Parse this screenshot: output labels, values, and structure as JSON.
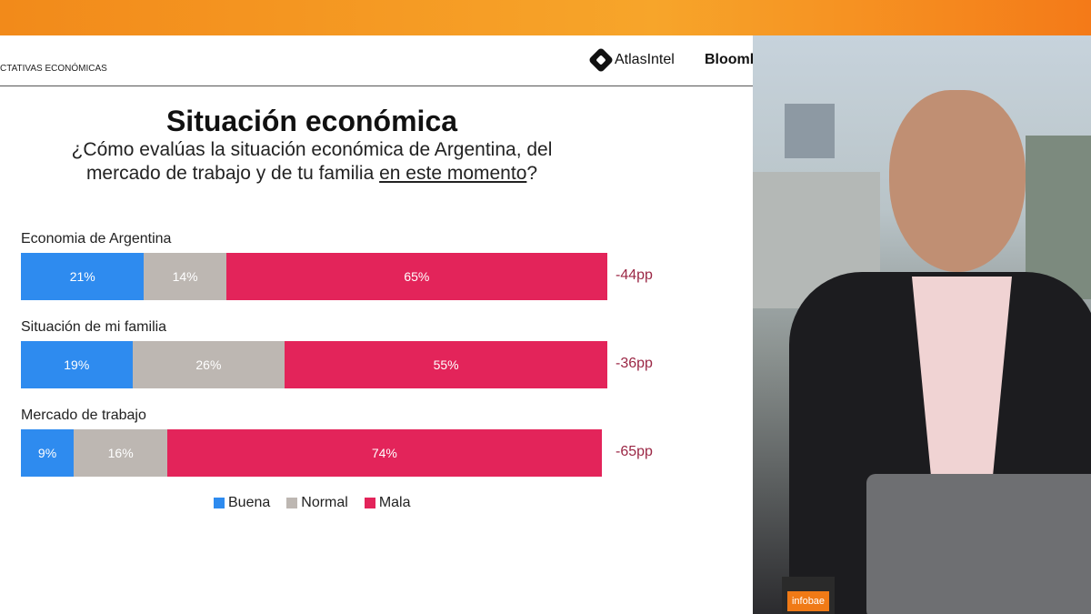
{
  "header": {
    "section": "CTATIVAS ECONÓMICAS",
    "brand1": "AtlasIntel",
    "brand2": "Bloomberg"
  },
  "chart_data": {
    "type": "bar",
    "orientation": "horizontal-stacked-100",
    "title": "Situación económica",
    "subtitle_pre": "¿Cómo evalúas la situación económica de Argentina, del mercado de trabajo y de tu familia ",
    "subtitle_underlined": "en este momento",
    "subtitle_post": "?",
    "categories": [
      "Economia de Argentina",
      "Situación de mi familia",
      "Mercado de trabajo"
    ],
    "series": [
      {
        "name": "Buena",
        "color": "#2e8bef",
        "values": [
          21,
          19,
          9
        ]
      },
      {
        "name": "Normal",
        "color": "#bdb7b2",
        "values": [
          14,
          26,
          16
        ]
      },
      {
        "name": "Mala",
        "color": "#e3245a",
        "values": [
          65,
          55,
          74
        ]
      }
    ],
    "value_labels": [
      [
        "21%",
        "14%",
        "65%"
      ],
      [
        "19%",
        "26%",
        "55%"
      ],
      [
        "9%",
        "16%",
        "74%"
      ]
    ],
    "net_labels": [
      "-44pp",
      "-36pp",
      "-65pp"
    ],
    "legend": "bottom"
  },
  "overlay": {
    "logo": "infobae"
  }
}
